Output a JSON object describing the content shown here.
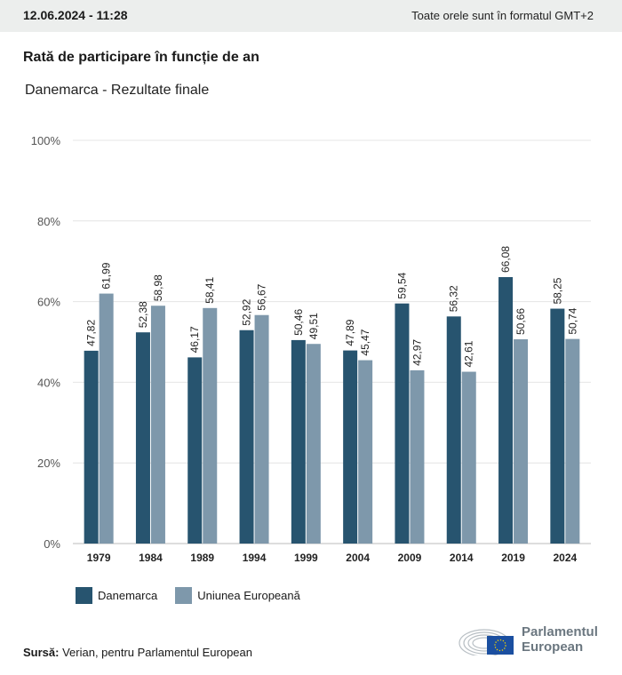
{
  "header": {
    "datetime": "12.06.2024 - 11:28",
    "timezone_note": "Toate orele sunt în formatul GMT+2"
  },
  "title": "Rată de participare în funcție de an",
  "subtitle": "Danemarca - Rezultate finale",
  "chart_data": {
    "type": "bar",
    "title": "Rată de participare în funcție de an",
    "subtitle": "Danemarca - Rezultate finale",
    "categories": [
      "1979",
      "1984",
      "1989",
      "1994",
      "1999",
      "2004",
      "2009",
      "2014",
      "2019",
      "2024"
    ],
    "series": [
      {
        "name": "Danemarca",
        "color": "#27546f",
        "values": [
          47.82,
          52.38,
          46.17,
          52.92,
          50.46,
          47.89,
          59.54,
          56.32,
          66.08,
          58.25
        ],
        "labels": [
          "47,82",
          "52,38",
          "46,17",
          "52,92",
          "50,46",
          "47,89",
          "59,54",
          "56,32",
          "66,08",
          "58,25"
        ]
      },
      {
        "name": "Uniunea Europeană",
        "color": "#7e98ab",
        "values": [
          61.99,
          58.98,
          58.41,
          56.67,
          49.51,
          45.47,
          42.97,
          42.61,
          50.66,
          50.74
        ],
        "labels": [
          "61,99",
          "58,98",
          "58,41",
          "56,67",
          "49,51",
          "45,47",
          "42,97",
          "42,61",
          "50,66",
          "50,74"
        ]
      }
    ],
    "yticks": [
      "0%",
      "20%",
      "40%",
      "60%",
      "80%",
      "100%"
    ],
    "ylim": [
      0,
      100
    ],
    "grid": true,
    "legend": "bottom-left"
  },
  "legend": [
    {
      "label": "Danemarca"
    },
    {
      "label": "Uniunea Europeană"
    }
  ],
  "source": {
    "label": "Sursă:",
    "text": " Verian, pentru Parlamentul European"
  },
  "logo": {
    "line1": "Parlamentul",
    "line2": "European"
  }
}
